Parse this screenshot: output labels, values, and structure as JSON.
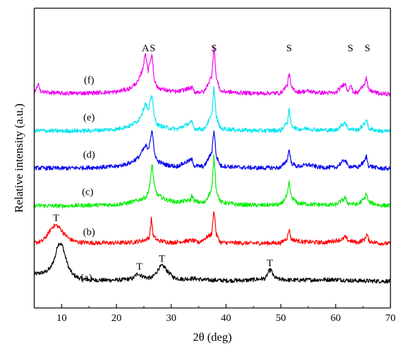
{
  "chart_data": {
    "type": "line",
    "xlabel": "2θ (deg)",
    "ylabel": "Relative intensity (a.u.)",
    "xlim": [
      5,
      70
    ],
    "xticks": [
      10,
      20,
      30,
      40,
      50,
      60,
      70
    ],
    "legend": "none",
    "grid": false,
    "series": [
      {
        "name": "(a)",
        "color": "#000000",
        "baseline": 0,
        "points": [
          [
            5,
            0.22
          ],
          [
            7,
            0.28
          ],
          [
            8,
            0.4
          ],
          [
            8.8,
            0.7
          ],
          [
            9.3,
            1.05
          ],
          [
            9.7,
            1.1
          ],
          [
            10.2,
            1.0
          ],
          [
            10.7,
            0.7
          ],
          [
            11.3,
            0.4
          ],
          [
            12,
            0.22
          ],
          [
            13,
            0.12
          ],
          [
            15,
            0.06
          ],
          [
            18,
            0.05
          ],
          [
            21,
            0.06
          ],
          [
            23,
            0.1
          ],
          [
            23.6,
            0.2
          ],
          [
            24,
            0.24
          ],
          [
            24.5,
            0.18
          ],
          [
            25.5,
            0.12
          ],
          [
            26.5,
            0.12
          ],
          [
            27.2,
            0.25
          ],
          [
            27.8,
            0.4
          ],
          [
            28.3,
            0.45
          ],
          [
            28.8,
            0.42
          ],
          [
            29.3,
            0.3
          ],
          [
            30.5,
            0.12
          ],
          [
            32,
            0.08
          ],
          [
            34,
            0.1
          ],
          [
            36,
            0.06
          ],
          [
            40,
            0.04
          ],
          [
            44,
            0.05
          ],
          [
            47.2,
            0.1
          ],
          [
            47.8,
            0.3
          ],
          [
            48.2,
            0.35
          ],
          [
            48.7,
            0.15
          ],
          [
            49.5,
            0.08
          ],
          [
            52,
            0.05
          ],
          [
            56,
            0.06
          ],
          [
            60,
            0.07
          ],
          [
            63,
            0.04
          ],
          [
            66,
            0.03
          ],
          [
            70,
            0.02
          ]
        ]
      },
      {
        "name": "(b)",
        "color": "#ff0000",
        "baseline": 1,
        "points": [
          [
            5,
            0.05
          ],
          [
            6.5,
            0.1
          ],
          [
            7.5,
            0.3
          ],
          [
            8.3,
            0.5
          ],
          [
            9,
            0.55
          ],
          [
            9.6,
            0.48
          ],
          [
            10.5,
            0.3
          ],
          [
            11.5,
            0.15
          ],
          [
            13,
            0.07
          ],
          [
            16,
            0.05
          ],
          [
            20,
            0.05
          ],
          [
            23,
            0.07
          ],
          [
            25,
            0.12
          ],
          [
            26,
            0.2
          ],
          [
            26.4,
            0.75
          ],
          [
            26.7,
            0.25
          ],
          [
            27.5,
            0.12
          ],
          [
            30,
            0.06
          ],
          [
            33.8,
            0.12
          ],
          [
            35,
            0.06
          ],
          [
            37.4,
            0.3
          ],
          [
            37.8,
            1.0
          ],
          [
            38.2,
            0.3
          ],
          [
            39,
            0.06
          ],
          [
            45,
            0.04
          ],
          [
            50,
            0.05
          ],
          [
            51.2,
            0.2
          ],
          [
            51.5,
            0.45
          ],
          [
            51.9,
            0.15
          ],
          [
            54,
            0.08
          ],
          [
            58,
            0.06
          ],
          [
            61.3,
            0.15
          ],
          [
            61.7,
            0.22
          ],
          [
            62.3,
            0.12
          ],
          [
            64,
            0.06
          ],
          [
            65.3,
            0.15
          ],
          [
            65.7,
            0.3
          ],
          [
            66.1,
            0.1
          ],
          [
            68,
            0.04
          ],
          [
            70,
            0.03
          ]
        ]
      },
      {
        "name": "(c)",
        "color": "#00ee00",
        "baseline": 2,
        "points": [
          [
            5,
            0.05
          ],
          [
            10,
            0.04
          ],
          [
            15,
            0.06
          ],
          [
            20,
            0.08
          ],
          [
            22,
            0.12
          ],
          [
            24,
            0.2
          ],
          [
            25.5,
            0.3
          ],
          [
            26.1,
            0.6
          ],
          [
            26.5,
            1.25
          ],
          [
            26.9,
            0.6
          ],
          [
            27.5,
            0.35
          ],
          [
            29,
            0.22
          ],
          [
            31,
            0.15
          ],
          [
            33.5,
            0.2
          ],
          [
            33.8,
            0.35
          ],
          [
            34.2,
            0.18
          ],
          [
            36,
            0.12
          ],
          [
            37.4,
            0.5
          ],
          [
            37.8,
            1.45
          ],
          [
            38.2,
            0.5
          ],
          [
            39,
            0.15
          ],
          [
            42,
            0.08
          ],
          [
            46,
            0.06
          ],
          [
            50,
            0.08
          ],
          [
            51.2,
            0.35
          ],
          [
            51.5,
            0.7
          ],
          [
            51.9,
            0.3
          ],
          [
            53,
            0.12
          ],
          [
            56,
            0.08
          ],
          [
            60,
            0.07
          ],
          [
            61.4,
            0.22
          ],
          [
            61.7,
            0.28
          ],
          [
            62.2,
            0.12
          ],
          [
            64,
            0.08
          ],
          [
            65.3,
            0.25
          ],
          [
            65.6,
            0.4
          ],
          [
            66,
            0.15
          ],
          [
            68,
            0.06
          ],
          [
            70,
            0.05
          ]
        ]
      },
      {
        "name": "(d)",
        "color": "#0000ee",
        "baseline": 3,
        "points": [
          [
            5,
            0.06
          ],
          [
            10,
            0.05
          ],
          [
            15,
            0.07
          ],
          [
            20,
            0.1
          ],
          [
            22.5,
            0.2
          ],
          [
            24,
            0.35
          ],
          [
            25,
            0.6
          ],
          [
            25.4,
            0.7
          ],
          [
            25.8,
            0.55
          ],
          [
            26.2,
            0.9
          ],
          [
            26.5,
            1.15
          ],
          [
            26.9,
            0.5
          ],
          [
            27.5,
            0.25
          ],
          [
            29,
            0.15
          ],
          [
            31,
            0.1
          ],
          [
            33.8,
            0.3
          ],
          [
            34.2,
            0.12
          ],
          [
            36,
            0.1
          ],
          [
            37.4,
            0.5
          ],
          [
            37.8,
            1.15
          ],
          [
            38.2,
            0.4
          ],
          [
            39,
            0.12
          ],
          [
            42,
            0.08
          ],
          [
            46,
            0.06
          ],
          [
            50,
            0.07
          ],
          [
            51.2,
            0.3
          ],
          [
            51.5,
            0.6
          ],
          [
            51.9,
            0.2
          ],
          [
            53,
            0.1
          ],
          [
            55,
            0.15
          ],
          [
            57,
            0.08
          ],
          [
            60,
            0.07
          ],
          [
            61.4,
            0.25
          ],
          [
            61.7,
            0.3
          ],
          [
            62.2,
            0.12
          ],
          [
            64,
            0.07
          ],
          [
            65.3,
            0.25
          ],
          [
            65.6,
            0.4
          ],
          [
            66,
            0.12
          ],
          [
            68,
            0.05
          ],
          [
            70,
            0.04
          ]
        ]
      },
      {
        "name": "(e)",
        "color": "#00e5ee",
        "baseline": 4,
        "points": [
          [
            5,
            0.06
          ],
          [
            10,
            0.05
          ],
          [
            15,
            0.06
          ],
          [
            20,
            0.1
          ],
          [
            22.5,
            0.2
          ],
          [
            24,
            0.35
          ],
          [
            24.8,
            0.6
          ],
          [
            25.3,
            0.85
          ],
          [
            25.8,
            0.6
          ],
          [
            26.2,
            0.9
          ],
          [
            26.5,
            1.1
          ],
          [
            26.9,
            0.45
          ],
          [
            27.5,
            0.22
          ],
          [
            29,
            0.15
          ],
          [
            31,
            0.1
          ],
          [
            33.8,
            0.3
          ],
          [
            34.2,
            0.12
          ],
          [
            36,
            0.1
          ],
          [
            37.4,
            0.5
          ],
          [
            37.8,
            1.3
          ],
          [
            38.2,
            0.45
          ],
          [
            39,
            0.12
          ],
          [
            42,
            0.08
          ],
          [
            46,
            0.06
          ],
          [
            50,
            0.07
          ],
          [
            51.2,
            0.3
          ],
          [
            51.5,
            0.65
          ],
          [
            51.9,
            0.22
          ],
          [
            53,
            0.1
          ],
          [
            55,
            0.12
          ],
          [
            57,
            0.08
          ],
          [
            60,
            0.07
          ],
          [
            61.4,
            0.25
          ],
          [
            61.7,
            0.32
          ],
          [
            62.2,
            0.12
          ],
          [
            64,
            0.07
          ],
          [
            65.3,
            0.25
          ],
          [
            65.6,
            0.4
          ],
          [
            66,
            0.12
          ],
          [
            68,
            0.05
          ],
          [
            70,
            0.04
          ]
        ]
      },
      {
        "name": "(f)",
        "color": "#ee00ee",
        "baseline": 5,
        "points": [
          [
            5,
            0.08
          ],
          [
            5.8,
            0.3
          ],
          [
            6.3,
            0.1
          ],
          [
            10,
            0.06
          ],
          [
            15,
            0.07
          ],
          [
            20,
            0.1
          ],
          [
            22.5,
            0.2
          ],
          [
            24,
            0.4
          ],
          [
            24.8,
            0.75
          ],
          [
            25.3,
            1.2
          ],
          [
            25.8,
            0.7
          ],
          [
            26.2,
            1.0
          ],
          [
            26.5,
            1.15
          ],
          [
            26.9,
            0.45
          ],
          [
            27.5,
            0.22
          ],
          [
            29,
            0.15
          ],
          [
            31,
            0.1
          ],
          [
            33.8,
            0.22
          ],
          [
            34.2,
            0.1
          ],
          [
            36,
            0.1
          ],
          [
            37.4,
            0.55
          ],
          [
            37.8,
            1.4
          ],
          [
            38.2,
            0.5
          ],
          [
            39,
            0.12
          ],
          [
            42,
            0.08
          ],
          [
            46,
            0.06
          ],
          [
            50,
            0.07
          ],
          [
            51.2,
            0.3
          ],
          [
            51.5,
            0.65
          ],
          [
            51.9,
            0.22
          ],
          [
            53,
            0.1
          ],
          [
            55,
            0.12
          ],
          [
            57,
            0.08
          ],
          [
            60,
            0.07
          ],
          [
            61.4,
            0.3
          ],
          [
            61.7,
            0.35
          ],
          [
            62.2,
            0.12
          ],
          [
            62.7,
            0.3
          ],
          [
            63.2,
            0.1
          ],
          [
            64,
            0.07
          ],
          [
            65.3,
            0.35
          ],
          [
            65.6,
            0.5
          ],
          [
            66,
            0.15
          ],
          [
            68,
            0.05
          ],
          [
            70,
            0.04
          ]
        ]
      }
    ],
    "annotations": [
      {
        "text": "T",
        "series": "(a)",
        "x": 24.2
      },
      {
        "text": "T",
        "series": "(a)",
        "x": 28.3
      },
      {
        "text": "T",
        "series": "(a)",
        "x": 48.0
      },
      {
        "text": "T",
        "series": "(b)",
        "x": 9.0
      },
      {
        "text": "A",
        "series": "(f)",
        "x": 25.3
      },
      {
        "text": "S",
        "series": "(f)",
        "x": 26.6
      },
      {
        "text": "S",
        "series": "(f)",
        "x": 37.8
      },
      {
        "text": "S",
        "series": "(f)",
        "x": 51.5
      },
      {
        "text": "S",
        "series": "(f)",
        "x": 62.7
      },
      {
        "text": "S",
        "series": "(f)",
        "x": 65.8
      }
    ]
  }
}
